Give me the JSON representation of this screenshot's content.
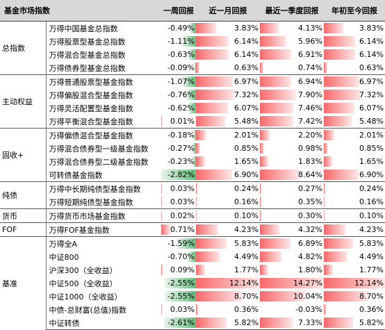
{
  "headers": [
    "基金市场指数",
    "一周回报",
    "近一月回报",
    "最近一季度回报",
    "年初至今回报"
  ],
  "colors": {
    "neg": "#63be7b",
    "pos": "#f8696b",
    "header_bg": "#d8d8d8"
  },
  "groups": [
    {
      "category": "总指数",
      "rows": [
        {
          "name": "万得中国基金总指数",
          "week": "-0.49%",
          "month": "3.83%",
          "quarter": "4.13%",
          "ytd": "3.83%",
          "w": -0.49,
          "m": 3.83,
          "q": 4.13,
          "y": 3.83
        },
        {
          "name": "万得股票型基金总指数",
          "week": "-1.11%",
          "month": "6.14%",
          "quarter": "5.96%",
          "ytd": "6.14%",
          "w": -1.11,
          "m": 6.14,
          "q": 5.96,
          "y": 6.14
        },
        {
          "name": "万得混合型基金总指数",
          "week": "-0.63%",
          "month": "6.14%",
          "quarter": "6.91%",
          "ytd": "6.14%",
          "w": -0.63,
          "m": 6.14,
          "q": 6.91,
          "y": 6.14
        },
        {
          "name": "万得债券型基金总指数",
          "week": "-0.09%",
          "month": "0.63%",
          "quarter": "0.74%",
          "ytd": "0.63%",
          "w": -0.09,
          "m": 0.63,
          "q": 0.74,
          "y": 0.63
        }
      ]
    },
    {
      "category": "主动权益",
      "rows": [
        {
          "name": "万得普通股票型基金指数",
          "week": "-1.07%",
          "month": "6.97%",
          "quarter": "6.94%",
          "ytd": "6.97%",
          "w": -1.07,
          "m": 6.97,
          "q": 6.94,
          "y": 6.97
        },
        {
          "name": "万得偏股混合型基金指数",
          "week": "-0.76%",
          "month": "7.32%",
          "quarter": "7.90%",
          "ytd": "7.32%",
          "w": -0.76,
          "m": 7.32,
          "q": 7.9,
          "y": 7.32
        },
        {
          "name": "万得灵活配置型基金指数",
          "week": "-0.62%",
          "month": "6.07%",
          "quarter": "7.46%",
          "ytd": "6.07%",
          "w": -0.62,
          "m": 6.07,
          "q": 7.46,
          "y": 6.07
        },
        {
          "name": "万得平衡混合型基金指数",
          "week": "0.01%",
          "month": "5.48%",
          "quarter": "7.42%",
          "ytd": "5.48%",
          "w": 0.01,
          "m": 5.48,
          "q": 7.42,
          "y": 5.48
        }
      ]
    },
    {
      "category": "固收+",
      "rows": [
        {
          "name": "万得偏债混合型基金指数",
          "week": "-0.18%",
          "month": "2.01%",
          "quarter": "2.20%",
          "ytd": "2.01%",
          "w": -0.18,
          "m": 2.01,
          "q": 2.2,
          "y": 2.01
        },
        {
          "name": "万得混合债券型一级基金指数",
          "week": "-0.27%",
          "month": "0.85%",
          "quarter": "0.98%",
          "ytd": "0.85%",
          "w": -0.27,
          "m": 0.85,
          "q": 0.98,
          "y": 0.85
        },
        {
          "name": "万得混合债券型二级基金指数",
          "week": "-0.23%",
          "month": "1.65%",
          "quarter": "1.83%",
          "ytd": "1.65%",
          "w": -0.23,
          "m": 1.65,
          "q": 1.83,
          "y": 1.65
        },
        {
          "name": "可转债基金指数",
          "week": "-2.82%",
          "month": "6.90%",
          "quarter": "8.64%",
          "ytd": "6.90%",
          "w": -2.82,
          "m": 6.9,
          "q": 8.64,
          "y": 6.9
        }
      ]
    },
    {
      "category": "纯债",
      "rows": [
        {
          "name": "万得中长期纯债型基金指数",
          "week": "0.03%",
          "month": "0.24%",
          "quarter": "0.27%",
          "ytd": "0.24%",
          "w": 0.03,
          "m": 0.24,
          "q": 0.27,
          "y": 0.24
        },
        {
          "name": "万得短期纯债型基金指数",
          "week": "0.03%",
          "month": "0.16%",
          "quarter": "0.35%",
          "ytd": "0.16%",
          "w": 0.03,
          "m": 0.16,
          "q": 0.35,
          "y": 0.16
        }
      ]
    },
    {
      "category": "货币",
      "rows": [
        {
          "name": "万得货币市场基金指数",
          "week": "0.02%",
          "month": "0.10%",
          "quarter": "0.30%",
          "ytd": "0.10%",
          "w": 0.02,
          "m": 0.1,
          "q": 0.3,
          "y": 0.1
        }
      ]
    },
    {
      "category": "FOF",
      "rows": [
        {
          "name": "万得FOF基金指数",
          "week": "0.71%",
          "month": "4.23%",
          "quarter": "4.32%",
          "ytd": "4.23%",
          "w": 0.71,
          "m": 4.23,
          "q": 4.32,
          "y": 4.23
        }
      ]
    },
    {
      "category": "基准",
      "rows": [
        {
          "name": "万得全A",
          "week": "-1.59%",
          "month": "5.83%",
          "quarter": "6.89%",
          "ytd": "5.83%",
          "w": -1.59,
          "m": 5.83,
          "q": 6.89,
          "y": 5.83
        },
        {
          "name": "中证800",
          "week": "-0.70%",
          "month": "4.49%",
          "quarter": "4.82%",
          "ytd": "4.49%",
          "w": -0.7,
          "m": 4.49,
          "q": 4.82,
          "y": 4.49
        },
        {
          "name": "沪深300（全收益）",
          "week": "0.09%",
          "month": "1.77%",
          "quarter": "1.80%",
          "ytd": "1.77%",
          "w": 0.09,
          "m": 1.77,
          "q": 1.8,
          "y": 1.77
        },
        {
          "name": "中证500（全收益）",
          "week": "-2.55%",
          "month": "12.14%",
          "quarter": "14.27%",
          "ytd": "12.14%",
          "w": -2.55,
          "m": 12.14,
          "q": 14.27,
          "y": 12.14
        },
        {
          "name": "中证1000（全收益）",
          "week": "-2.55%",
          "month": "8.70%",
          "quarter": "10.04%",
          "ytd": "8.70%",
          "w": -2.55,
          "m": 8.7,
          "q": 10.04,
          "y": 8.7
        },
        {
          "name": "中债-总财富(总值)指数",
          "week": "0.03%",
          "month": "0.36%",
          "quarter": "-0.03%",
          "ytd": "0.36%",
          "w": 0.03,
          "m": 0.36,
          "q": -0.03,
          "y": 0.36
        },
        {
          "name": "中证转债",
          "week": "-2.61%",
          "month": "5.82%",
          "quarter": "7.33%",
          "ytd": "5.82%",
          "w": -2.61,
          "m": 5.82,
          "q": 7.33,
          "y": 5.82
        }
      ]
    }
  ]
}
